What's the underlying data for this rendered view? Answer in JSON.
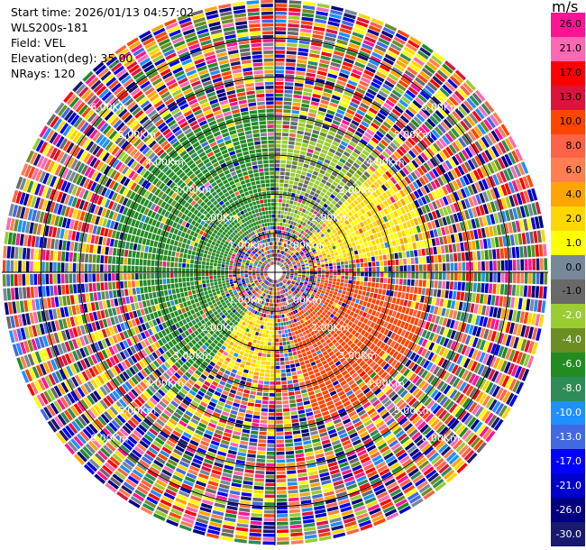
{
  "info": {
    "start_time": "Start time: 2026/01/13 04:57:02",
    "instrument": "WLS200s-181",
    "field": "Field: VEL",
    "elevation": "Elevation(deg): 35.00",
    "nrays": "NRays: 120"
  },
  "colorbar": {
    "unit": "m/s",
    "ticks": [
      "26.0",
      "21.0",
      "17.0",
      "13.0",
      "10.0",
      "8.0",
      "6.0",
      "4.0",
      "2.0",
      "1.0",
      "0.0",
      "-1.0",
      "-2.0",
      "-4.0",
      "-6.0",
      "-8.0",
      "-10.0",
      "-13.0",
      "-17.0",
      "-21.0",
      "-26.0",
      "-30.0"
    ],
    "colors": [
      "#ff1493",
      "#ff69b4",
      "#ff0000",
      "#dc143c",
      "#ff4500",
      "#ff6347",
      "#ff7f50",
      "#ffa500",
      "#ffd700",
      "#ffff00",
      "#778899",
      "#696969",
      "#9acd32",
      "#6b8e23",
      "#228b22",
      "#2e8b57",
      "#1e90ff",
      "#4169e1",
      "#0000ff",
      "#0000cd",
      "#000080",
      "#191970"
    ]
  },
  "chart_data": {
    "type": "ppi",
    "field": "VEL",
    "unit": "m/s",
    "elevation_deg": 35.0,
    "n_rays": 120,
    "range_rings_km": [
      "1.00Km",
      "2.00Km",
      "3.00Km",
      "4.00Km",
      "5.00Km",
      "6.00Km"
    ],
    "max_range_km": 7.0,
    "coherent_sectors": [
      {
        "azimuth_from_deg": 270,
        "azimuth_to_deg": 360,
        "max_range_km": 4.2,
        "value_ms": -6.0
      },
      {
        "azimuth_from_deg": 0,
        "azimuth_to_deg": 45,
        "max_range_km": 4.0,
        "value_ms": -2.0
      },
      {
        "azimuth_from_deg": 30,
        "azimuth_to_deg": 80,
        "max_range_km": 4.0,
        "value_ms": 2.0
      },
      {
        "azimuth_from_deg": 95,
        "azimuth_to_deg": 165,
        "max_range_km": 4.0,
        "value_ms": 10.0
      },
      {
        "azimuth_from_deg": 180,
        "azimuth_to_deg": 215,
        "max_range_km": 2.8,
        "value_ms": 2.0
      },
      {
        "azimuth_from_deg": 215,
        "azimuth_to_deg": 275,
        "max_range_km": 3.5,
        "value_ms": -6.0
      }
    ],
    "noise_note_range_km": 4.3
  }
}
